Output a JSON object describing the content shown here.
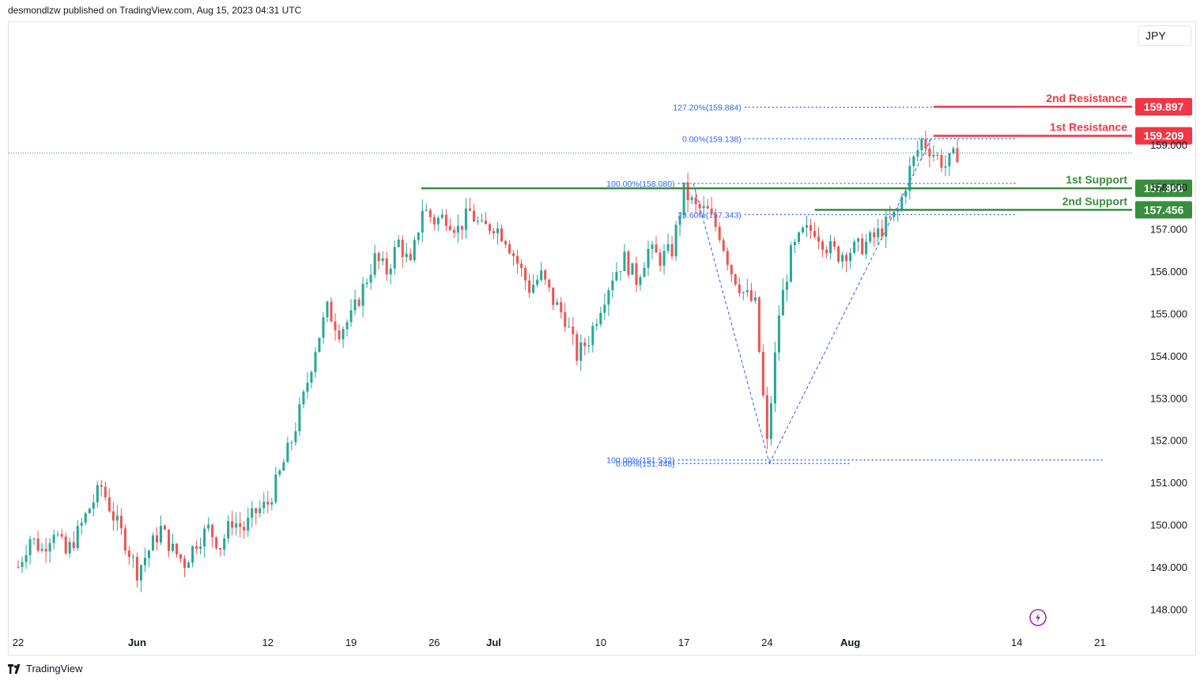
{
  "caption": "desmondlzw published on TradingView.com, Aug 15, 2023 04:31 UTC",
  "footer": {
    "brand": "TradingView"
  },
  "currency": "JPY",
  "colors": {
    "up": "#26a69a",
    "down": "#ef5350",
    "support": "#388e3c",
    "resistance": "#f23645",
    "fib": "#2962ff",
    "axis_text": "#131722",
    "price_line": "#089981"
  },
  "icons": {
    "lightning": "lightning-icon",
    "logo": "tradingview-logo-icon"
  },
  "chart_data": {
    "type": "candlestick",
    "ylim": [
      147.5,
      161.9
    ],
    "y_ticks": [
      148,
      149,
      150,
      151,
      152,
      153,
      154,
      155,
      156,
      157,
      158,
      159
    ],
    "y_tick_labels": [
      "148.000",
      "149.000",
      "150.000",
      "151.000",
      "152.000",
      "153.000",
      "154.000",
      "155.000",
      "156.000",
      "157.000",
      "158.000",
      "159.000"
    ],
    "x_ticks": [
      {
        "label": "22",
        "day": 0
      },
      {
        "label": "Jun",
        "day": 10
      },
      {
        "label": "12",
        "day": 21
      },
      {
        "label": "19",
        "day": 28
      },
      {
        "label": "26",
        "day": 35
      },
      {
        "label": "Jul",
        "day": 40
      },
      {
        "label": "10",
        "day": 49
      },
      {
        "label": "17",
        "day": 56
      },
      {
        "label": "24",
        "day": 63
      },
      {
        "label": "Aug",
        "day": 70
      },
      {
        "label": "14",
        "day": 84
      },
      {
        "label": "21",
        "day": 91
      }
    ],
    "x_range_days": [
      -0.8,
      93.7
    ],
    "path": [
      [
        0,
        149.0
      ],
      [
        1,
        149.7
      ],
      [
        2,
        149.4
      ],
      [
        3,
        149.9
      ],
      [
        4,
        149.3
      ],
      [
        5,
        149.8
      ],
      [
        6,
        150.4
      ],
      [
        7,
        150.9
      ],
      [
        8,
        150.2
      ],
      [
        9,
        149.6
      ],
      [
        10,
        148.9
      ],
      [
        11,
        149.4
      ],
      [
        12,
        149.9
      ],
      [
        13,
        149.4
      ],
      [
        14,
        149.1
      ],
      [
        15,
        149.6
      ],
      [
        16,
        149.9
      ],
      [
        17,
        149.5
      ],
      [
        18,
        150.1
      ],
      [
        19,
        149.9
      ],
      [
        20,
        150.3
      ],
      [
        21,
        150.5
      ],
      [
        22,
        151.2
      ],
      [
        23,
        152.0
      ],
      [
        24,
        153.0
      ],
      [
        25,
        154.2
      ],
      [
        26,
        155.1
      ],
      [
        27,
        154.6
      ],
      [
        28,
        154.9
      ],
      [
        29,
        155.6
      ],
      [
        30,
        156.3
      ],
      [
        31,
        156.0
      ],
      [
        32,
        156.7
      ],
      [
        33,
        156.1
      ],
      [
        34,
        157.5
      ],
      [
        35,
        157.2
      ],
      [
        36,
        157.3
      ],
      [
        37,
        157.0
      ],
      [
        38,
        157.4
      ],
      [
        39,
        157.0
      ],
      [
        40,
        157.1
      ],
      [
        41,
        156.8
      ],
      [
        42,
        156.2
      ],
      [
        43,
        155.6
      ],
      [
        44,
        155.9
      ],
      [
        45,
        155.3
      ],
      [
        46,
        154.9
      ],
      [
        47,
        154.0
      ],
      [
        48,
        154.4
      ],
      [
        49,
        155.2
      ],
      [
        50,
        155.9
      ],
      [
        51,
        156.3
      ],
      [
        52,
        155.8
      ],
      [
        53,
        156.5
      ],
      [
        54,
        156.3
      ],
      [
        55,
        156.5
      ],
      [
        56,
        157.9
      ],
      [
        57,
        157.5
      ],
      [
        58,
        157.4
      ],
      [
        59,
        156.9
      ],
      [
        60,
        156.0
      ],
      [
        61,
        155.5
      ],
      [
        62,
        155.2
      ],
      [
        63,
        151.9
      ],
      [
        64,
        155.0
      ],
      [
        65,
        156.4
      ],
      [
        66,
        156.9
      ],
      [
        67,
        157.0
      ],
      [
        68,
        156.6
      ],
      [
        69,
        156.4
      ],
      [
        70,
        156.5
      ],
      [
        71,
        156.6
      ],
      [
        72,
        156.8
      ],
      [
        73,
        157.1
      ],
      [
        74,
        157.4
      ],
      [
        75,
        158.4
      ],
      [
        76,
        159.1
      ],
      [
        77,
        158.8
      ],
      [
        78,
        158.5
      ],
      [
        79,
        158.8
      ]
    ],
    "candles_per_day": 3,
    "levels": [
      {
        "name": "2nd Resistance",
        "value": 159.897,
        "label": "159.897",
        "kind": "resistance",
        "from_day": 77.0
      },
      {
        "name": "1st Resistance",
        "value": 159.209,
        "label": "159.209",
        "kind": "resistance",
        "from_day": 77.0
      },
      {
        "name": "1st Support",
        "value": 157.966,
        "label": "157.966",
        "kind": "support",
        "from_day": 33.9
      },
      {
        "name": "2nd Support",
        "value": 157.456,
        "label": "157.456",
        "kind": "support",
        "from_day": 67.0
      }
    ],
    "fib_levels": [
      {
        "text": "127.20%(159.884)",
        "value": 159.884,
        "from_day": 61.1,
        "to_day": 84.0
      },
      {
        "text": "0.00%(159.138)",
        "value": 159.138,
        "from_day": 61.1,
        "to_day": 84.0
      },
      {
        "text": "100.00%(158.080)",
        "value": 158.08,
        "from_day": 55.5,
        "to_day": 84.0
      },
      {
        "text": "23.60%(157.343)",
        "value": 157.343,
        "from_day": 61.1,
        "to_day": 84.0
      },
      {
        "text": "0.00%(151.448)",
        "value": 151.448,
        "from_day": 55.5,
        "to_day": 70.0
      },
      {
        "text": "100.00%(151.532)",
        "value": 151.532,
        "from_day": 55.5,
        "to_day": 91.2
      }
    ],
    "fib_trend_lines": [
      {
        "from": [
          56.8,
          158.08
        ],
        "to": [
          63.2,
          151.45
        ]
      },
      {
        "from": [
          63.2,
          151.45
        ],
        "to": [
          76.8,
          159.14
        ]
      }
    ],
    "current_price_line": 158.8
  }
}
